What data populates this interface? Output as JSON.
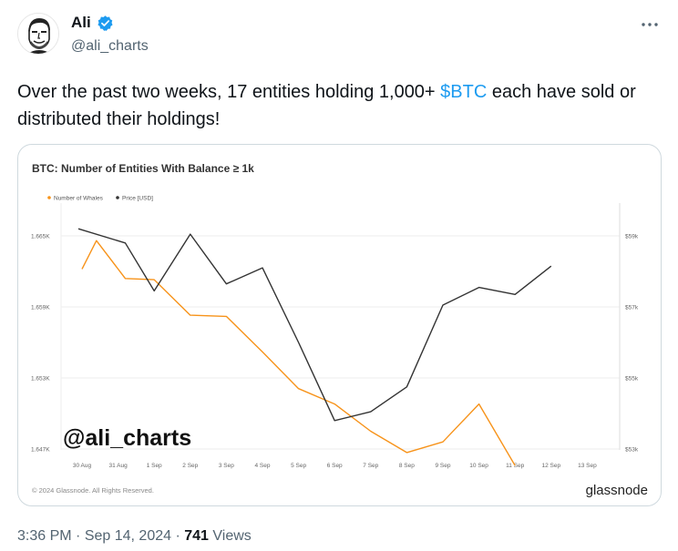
{
  "author": {
    "name": "Ali",
    "handle": "@ali_charts",
    "verified_color": "#1d9bf0"
  },
  "tweet": {
    "text_before": "Over the past two weeks, 17 entities holding 1,000+ ",
    "cashtag": "$BTC",
    "text_after": " each have sold or distributed their holdings!",
    "link_color": "#1d9bf0"
  },
  "meta": {
    "time": "3:36 PM",
    "separator": " · ",
    "date": "Sep 14, 2024",
    "views_count": "741",
    "views_label": " Views"
  },
  "chart_data": {
    "type": "line",
    "title": "BTC: Number of Entities With Balance ≥ 1k",
    "x": [
      "30 Aug",
      "31 Aug",
      "1 Sep",
      "2 Sep",
      "3 Sep",
      "4 Sep",
      "5 Sep",
      "6 Sep",
      "7 Sep",
      "8 Sep",
      "9 Sep",
      "10 Sep",
      "11 Sep",
      "12 Sep",
      "13 Sep"
    ],
    "series": [
      {
        "name": "Number of Whales",
        "color": "#f7931a",
        "axis": "left",
        "points": [
          [
            0,
            1662.2
          ],
          [
            0.4,
            1664.6
          ],
          [
            1.2,
            1661.4
          ],
          [
            2.0,
            1661.3
          ],
          [
            3.0,
            1658.3
          ],
          [
            4.0,
            1658.2
          ],
          [
            5.0,
            1655.2
          ],
          [
            6.0,
            1652.1
          ],
          [
            7.0,
            1650.8
          ],
          [
            8.0,
            1648.5
          ],
          [
            9.0,
            1646.7
          ],
          [
            10.0,
            1647.6
          ],
          [
            11.0,
            1650.8
          ],
          [
            12.0,
            1645.6
          ]
        ]
      },
      {
        "name": "Price [USD]",
        "color": "#333333",
        "axis": "right",
        "points": [
          [
            -0.1,
            59200
          ],
          [
            1.2,
            58800
          ],
          [
            2.0,
            57450
          ],
          [
            3.0,
            59050
          ],
          [
            4.0,
            57650
          ],
          [
            5.0,
            58100
          ],
          [
            6.0,
            56000
          ],
          [
            7.0,
            53800
          ],
          [
            8.0,
            54050
          ],
          [
            9.0,
            54750
          ],
          [
            10.0,
            57050
          ],
          [
            11.0,
            57550
          ],
          [
            12.0,
            57350
          ],
          [
            13.0,
            58150
          ]
        ]
      }
    ],
    "left_axis": {
      "ticks": [
        1647,
        1653,
        1659,
        1665
      ],
      "labels": [
        "1.647K",
        "1.653K",
        "1.659K",
        "1.665K"
      ],
      "range": [
        1647,
        1665
      ]
    },
    "right_axis": {
      "ticks": [
        53000,
        55000,
        57000,
        59000
      ],
      "labels": [
        "$53k",
        "$55k",
        "$57k",
        "$59k"
      ],
      "range": [
        53000,
        59000
      ]
    },
    "grid": true,
    "legend": "top-left",
    "watermark": "@ali_charts",
    "footer": "© 2024 Glassnode. All Rights Reserved.",
    "brand": "glassnode"
  }
}
